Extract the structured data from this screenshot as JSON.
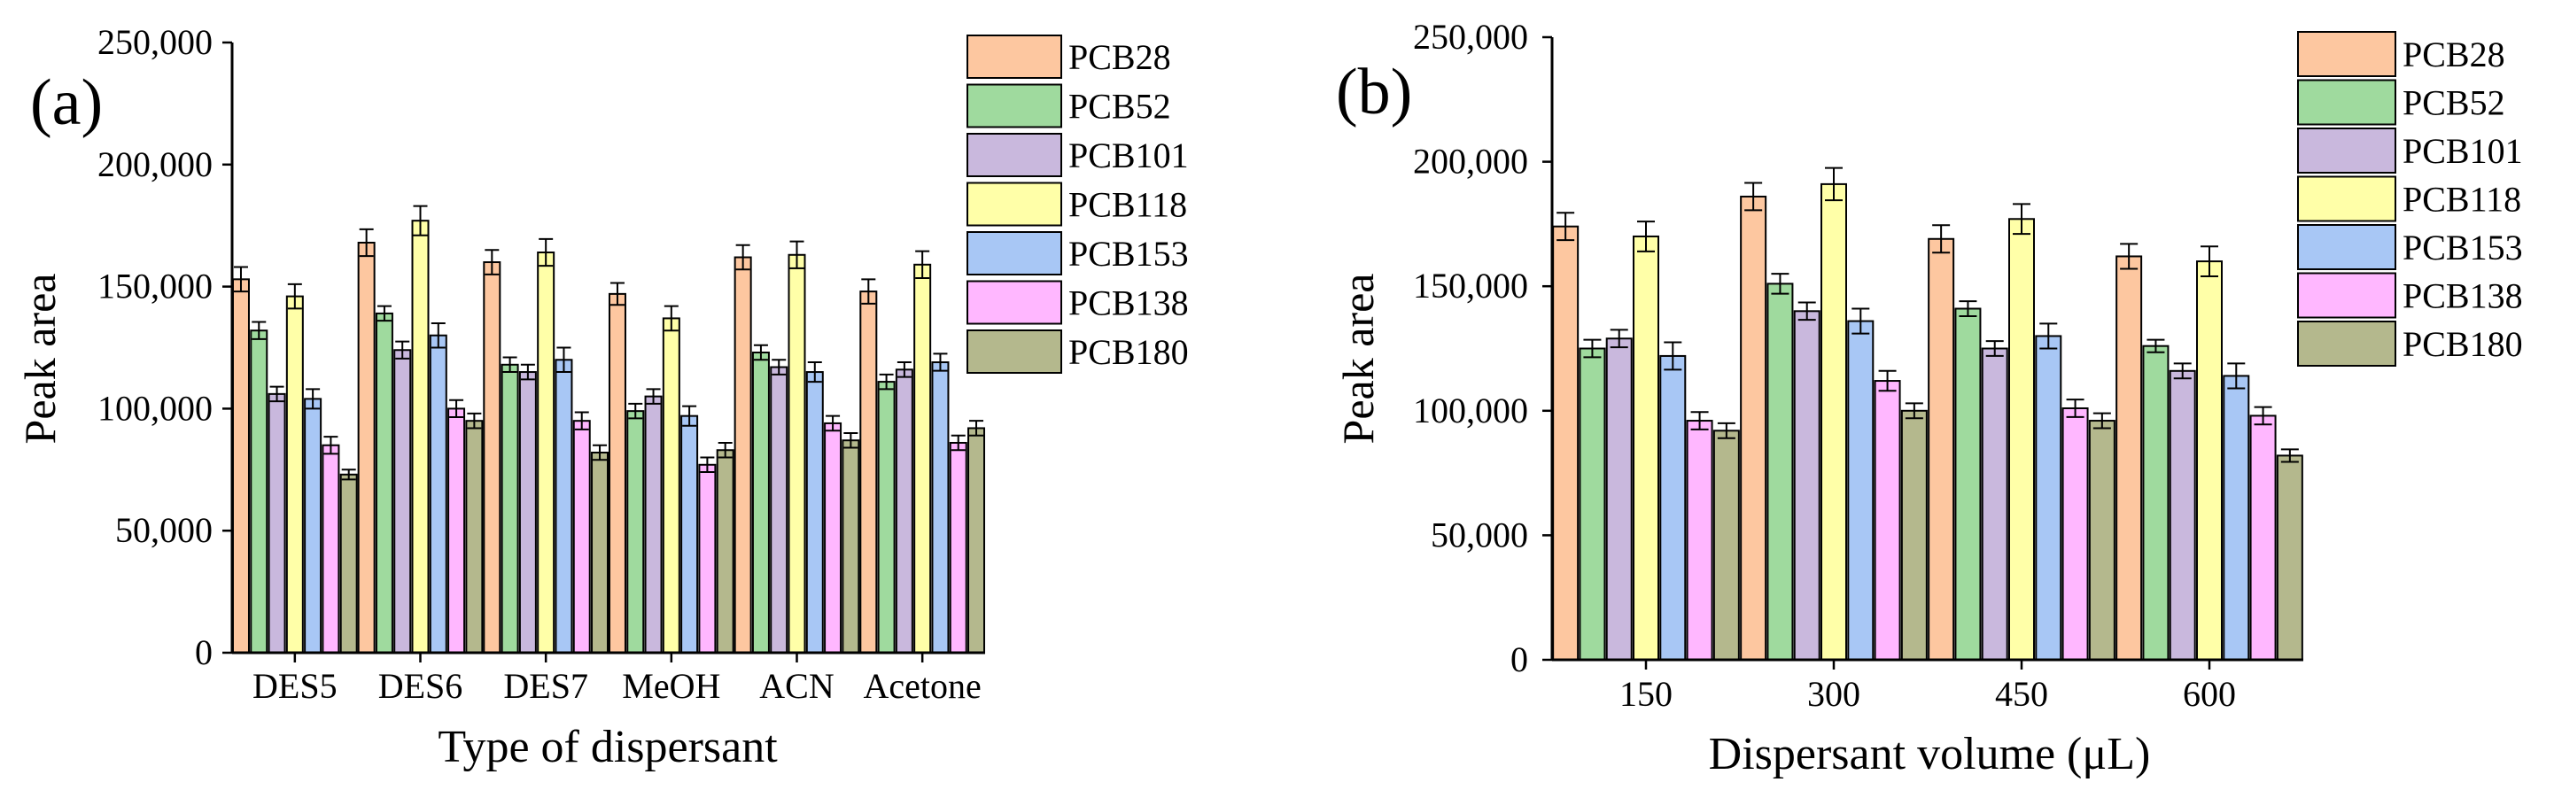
{
  "colors": {
    "PCB28": "#FDC7A0",
    "PCB52": "#9FDA9E",
    "PCB101": "#C9B8DD",
    "PCB118": "#FFFFA8",
    "PCB153": "#A8C7F5",
    "PCB138": "#FFB7FF",
    "PCB180": "#B4B88D"
  },
  "chart_data": [
    {
      "type": "bar",
      "panel_label": "(a)",
      "title": "",
      "xlabel": "Type of dispersant",
      "ylabel": "Peak area",
      "ylim": [
        0,
        250000
      ],
      "yticks": [
        0,
        50000,
        100000,
        150000,
        200000,
        250000
      ],
      "ytick_labels": [
        "0",
        "50,000",
        "100,000",
        "150,000",
        "200,000",
        "250,000"
      ],
      "legend_position": "top-right",
      "categories": [
        "DES5",
        "DES6",
        "DES7",
        "MeOH",
        "ACN",
        "Acetone"
      ],
      "series": [
        {
          "name": "PCB28",
          "values": [
            153000,
            168000,
            160000,
            147000,
            162000,
            148000
          ],
          "errors": [
            5000,
            5500,
            5000,
            4500,
            5000,
            5000
          ]
        },
        {
          "name": "PCB52",
          "values": [
            132000,
            139000,
            118000,
            99000,
            123000,
            111000
          ],
          "errors": [
            3500,
            3000,
            3000,
            3000,
            3000,
            3000
          ]
        },
        {
          "name": "PCB101",
          "values": [
            106000,
            124000,
            115000,
            105000,
            117000,
            116000
          ],
          "errors": [
            3000,
            3500,
            3000,
            3000,
            3000,
            3000
          ]
        },
        {
          "name": "PCB118",
          "values": [
            146000,
            177000,
            164000,
            137000,
            163000,
            159000
          ],
          "errors": [
            5000,
            6000,
            5500,
            5000,
            5500,
            5500
          ]
        },
        {
          "name": "PCB153",
          "values": [
            104000,
            130000,
            120000,
            97000,
            115000,
            119000
          ],
          "errors": [
            4000,
            5000,
            5000,
            4000,
            4000,
            3500
          ]
        },
        {
          "name": "PCB138",
          "values": [
            85000,
            100000,
            95000,
            77000,
            94000,
            86000
          ],
          "errors": [
            3500,
            3500,
            3500,
            3000,
            3000,
            3000
          ]
        },
        {
          "name": "PCB180",
          "values": [
            73000,
            95000,
            82000,
            83000,
            87000,
            92000
          ],
          "errors": [
            2000,
            3000,
            3000,
            3000,
            3000,
            3000
          ]
        }
      ]
    },
    {
      "type": "bar",
      "panel_label": "(b)",
      "title": "",
      "xlabel": "Dispersant volume (μL)",
      "ylabel": "Peak area",
      "ylim": [
        0,
        250000
      ],
      "yticks": [
        0,
        50000,
        100000,
        150000,
        200000,
        250000
      ],
      "ytick_labels": [
        "0",
        "50,000",
        "100,000",
        "150,000",
        "200,000",
        "250,000"
      ],
      "legend_position": "top-right",
      "categories": [
        "150",
        "300",
        "450",
        "600"
      ],
      "series": [
        {
          "name": "PCB28",
          "values": [
            174000,
            186000,
            169000,
            162000
          ],
          "errors": [
            5500,
            5500,
            5500,
            5000
          ]
        },
        {
          "name": "PCB52",
          "values": [
            125000,
            151000,
            141000,
            126000
          ],
          "errors": [
            3500,
            4000,
            3000,
            2500
          ]
        },
        {
          "name": "PCB101",
          "values": [
            129000,
            140000,
            125000,
            116000
          ],
          "errors": [
            3500,
            3500,
            3000,
            3000
          ]
        },
        {
          "name": "PCB118",
          "values": [
            170000,
            191000,
            177000,
            160000
          ],
          "errors": [
            6000,
            6500,
            6000,
            6000
          ]
        },
        {
          "name": "PCB153",
          "values": [
            122000,
            136000,
            130000,
            114000
          ],
          "errors": [
            5500,
            5000,
            5000,
            5000
          ]
        },
        {
          "name": "PCB138",
          "values": [
            96000,
            112000,
            101000,
            98000
          ],
          "errors": [
            3500,
            4000,
            3500,
            3500
          ]
        },
        {
          "name": "PCB180",
          "values": [
            92000,
            100000,
            96000,
            82000
          ],
          "errors": [
            3000,
            3000,
            3000,
            2500
          ]
        }
      ]
    }
  ]
}
